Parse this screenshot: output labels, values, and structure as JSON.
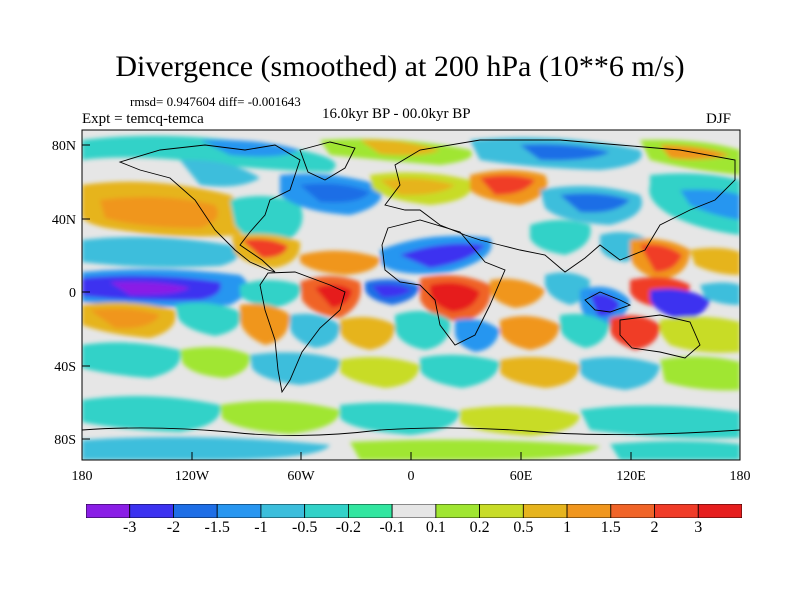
{
  "figure": {
    "title": "Divergence (smoothed) at 200 hPa (10**6 m/s)",
    "stats": "rmsd= 0.947604 diff= -0.001643",
    "experiment": "Expt = temcq-temca",
    "period": "16.0kyr BP - 00.0kyr BP",
    "season": "DJF"
  },
  "axes": {
    "y_ticks": [
      "80N",
      "40N",
      "0",
      "40S",
      "80S"
    ],
    "x_ticks": [
      "180",
      "120W",
      "60W",
      "0",
      "60E",
      "120E",
      "180"
    ]
  },
  "colorbar": {
    "labels": [
      "-3",
      "-2",
      "-1.5",
      "-1",
      "-0.5",
      "-0.2",
      "-0.1",
      "0.1",
      "0.2",
      "0.5",
      "1",
      "1.5",
      "2",
      "3"
    ],
    "colors": [
      "#8a1ee6",
      "#3c32f0",
      "#1e6ee6",
      "#2896f0",
      "#3cbedc",
      "#32d2c8",
      "#32e6a0",
      "#e6e6e6",
      "#a0e632",
      "#c8dc28",
      "#e6b41e",
      "#f0961e",
      "#f06428",
      "#f03c28",
      "#e61e1e"
    ]
  },
  "colors": {
    "land_outline": "#000000",
    "no_data": "#e6e6e6"
  }
}
